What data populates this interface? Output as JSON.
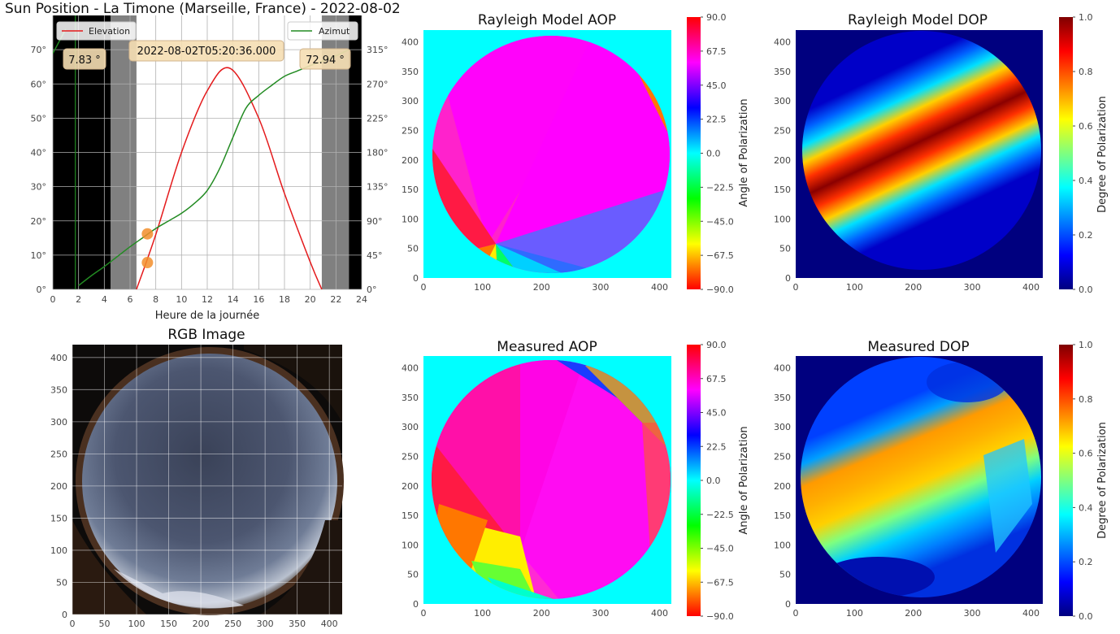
{
  "figure_title": "Sun Position - La Timone (Marseille, France) - 2022-08-02",
  "colors": {
    "elevation": "#e41a1c",
    "azimuth": "#228b22",
    "sun_marker": "#f28e2b",
    "night": "#000000",
    "twilight": "#808080",
    "aop_cmap": [
      "#ff0000",
      "#ffff00",
      "#00ff00",
      "#00ffff",
      "#0000ff",
      "#ff00ff",
      "#ff0000"
    ],
    "dop_cmap": [
      "#00007f",
      "#0000ff",
      "#007fff",
      "#00ffff",
      "#7fff7f",
      "#ffff00",
      "#ff7f00",
      "#ff0000",
      "#7f0000"
    ]
  },
  "chart_data": [
    {
      "type": "line",
      "title": "",
      "xlabel": "Heure de la journée",
      "xlim": [
        0,
        24
      ],
      "xticks": [
        "0",
        "2",
        "4",
        "6",
        "8",
        "10",
        "12",
        "14",
        "16",
        "18",
        "20",
        "22",
        "24"
      ],
      "ylim_left": [
        0,
        80
      ],
      "yticks_left": [
        "0°",
        "10°",
        "20°",
        "30°",
        "40°",
        "50°",
        "60°",
        "70°"
      ],
      "ylim_right": [
        0,
        360
      ],
      "yticks_right": [
        "0°",
        "45°",
        "90°",
        "135°",
        "180°",
        "225°",
        "270°",
        "315°"
      ],
      "grid": true,
      "night_bands": [
        [
          0,
          4.5
        ],
        [
          23,
          24
        ]
      ],
      "twilight_bands": [
        [
          4.5,
          6.5
        ],
        [
          20.9,
          23
        ]
      ],
      "series": [
        {
          "name": "Elevation",
          "axis": "left",
          "x": [
            6.5,
            8,
            10,
            12,
            13.8,
            16,
            18,
            20,
            20.9
          ],
          "y": [
            0,
            16,
            40,
            58,
            64.5,
            50,
            28,
            8,
            0
          ]
        },
        {
          "name": "Azimut",
          "axis": "right",
          "x": [
            0,
            1,
            2,
            3,
            4,
            5,
            6,
            7,
            8,
            9,
            10,
            11,
            12,
            13,
            14,
            15,
            16,
            17,
            18,
            19,
            20,
            21,
            22,
            23
          ],
          "y": [
            310,
            342,
            5,
            18,
            30,
            43,
            56,
            68,
            80,
            90,
            100,
            113,
            130,
            160,
            200,
            238,
            255,
            268,
            280,
            287,
            294,
            300,
            307,
            315
          ]
        }
      ],
      "current_marker": {
        "x": 7.35,
        "elevation": 7.83,
        "azimuth": 72.94
      },
      "elevation_label": "7.83 °",
      "azimuth_label": "72.94 °",
      "timestamp_label": "2022-08-02T05:20:36.000",
      "legend_left": "top-left",
      "legend_right": "top-right"
    },
    {
      "type": "heatmap",
      "title": "Rayleigh Model AOP",
      "xlim": [
        0,
        420
      ],
      "ylim": [
        0,
        420
      ],
      "xticks": [
        "0",
        "100",
        "200",
        "300",
        "400"
      ],
      "yticks": [
        "0",
        "50",
        "100",
        "150",
        "200",
        "250",
        "300",
        "350",
        "400"
      ],
      "colorbar_label": "Angle of Polarization",
      "colorbar_ticks": [
        "90.0",
        "67.5",
        "45.0",
        "22.5",
        "0.0",
        "−22.5",
        "−45.0",
        "−67.5",
        "−90.0"
      ],
      "background_value": 0.0,
      "singular_point": [
        115,
        55
      ]
    },
    {
      "type": "heatmap",
      "title": "Rayleigh Model DOP",
      "xlim": [
        0,
        420
      ],
      "ylim": [
        0,
        420
      ],
      "xticks": [
        "0",
        "100",
        "200",
        "300",
        "400"
      ],
      "yticks": [
        "0",
        "50",
        "100",
        "150",
        "200",
        "250",
        "300",
        "350",
        "400"
      ],
      "colorbar_label": "Degree of Polarization",
      "colorbar_ticks": [
        "1.0",
        "0.8",
        "0.6",
        "0.4",
        "0.2",
        "0.0"
      ],
      "background_value": 0.0,
      "peak_value": 0.95
    },
    {
      "type": "image",
      "title": "RGB Image",
      "xlim": [
        0,
        420
      ],
      "ylim": [
        0,
        420
      ],
      "xticks": [
        "0",
        "50",
        "100",
        "150",
        "200",
        "250",
        "300",
        "350",
        "400"
      ],
      "yticks": [
        "0",
        "50",
        "100",
        "150",
        "200",
        "250",
        "300",
        "350",
        "400"
      ],
      "grid": true
    },
    {
      "type": "heatmap",
      "title": "Measured AOP",
      "xlim": [
        0,
        420
      ],
      "ylim": [
        0,
        420
      ],
      "xticks": [
        "0",
        "100",
        "200",
        "300",
        "400"
      ],
      "yticks": [
        "0",
        "50",
        "100",
        "150",
        "200",
        "250",
        "300",
        "350",
        "400"
      ],
      "colorbar_label": "Angle of Polarization",
      "colorbar_ticks": [
        "90.0",
        "67.5",
        "45.0",
        "22.5",
        "0.0",
        "−22.5",
        "−45.0",
        "−67.5",
        "−90.0"
      ]
    },
    {
      "type": "heatmap",
      "title": "Measured DOP",
      "xlim": [
        0,
        420
      ],
      "ylim": [
        0,
        420
      ],
      "xticks": [
        "0",
        "100",
        "200",
        "300",
        "400"
      ],
      "yticks": [
        "0",
        "50",
        "100",
        "150",
        "200",
        "250",
        "300",
        "350",
        "400"
      ],
      "colorbar_label": "Degree of Polarization",
      "colorbar_ticks": [
        "1.0",
        "0.8",
        "0.6",
        "0.4",
        "0.2",
        "0.0"
      ]
    }
  ]
}
